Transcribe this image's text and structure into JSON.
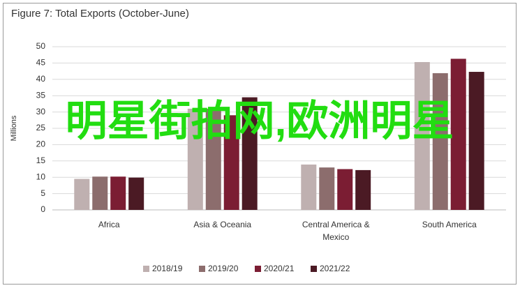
{
  "chart_data": {
    "type": "bar",
    "title": "Figure 7: Total Exports (October-June)",
    "y_label": "Millions",
    "categories": [
      "Africa",
      "Asia & Oceania",
      "Central America & Mexico",
      "South America"
    ],
    "series": [
      {
        "name": "2018/19",
        "color": "#bfb0b0",
        "values": [
          9.5,
          31,
          13.9,
          45.3
        ]
      },
      {
        "name": "2019/20",
        "color": "#8c6d6d",
        "values": [
          10.2,
          31,
          13,
          41.9
        ]
      },
      {
        "name": "2020/21",
        "color": "#7b1d33",
        "values": [
          10.2,
          29,
          12.5,
          46.3
        ]
      },
      {
        "name": "2021/22",
        "color": "#4b1a24",
        "values": [
          9.9,
          34.5,
          12.2,
          42.3
        ]
      }
    ],
    "ylim": [
      0,
      50
    ],
    "yticks": [
      0,
      5,
      10,
      15,
      20,
      25,
      30,
      35,
      40,
      45,
      50
    ],
    "grid": true,
    "annotation": "明星街拍网,欧洲明星"
  }
}
